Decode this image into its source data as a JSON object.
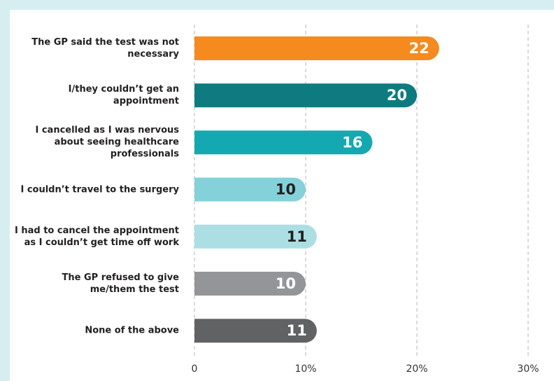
{
  "chart_data": {
    "type": "bar",
    "orientation": "horizontal",
    "categories": [
      "The GP said the test was not necessary",
      "I/they couldn’t get an appointment",
      "I cancelled as I was nervous about seeing healthcare professionals",
      "I couldn’t travel to the surgery",
      "I had to cancel the appointment as I couldn’t get time off work",
      "The GP refused to give me/them the test",
      "None of the above"
    ],
    "values": [
      22,
      20,
      16,
      10,
      11,
      10,
      11
    ],
    "colors": [
      "#f58a1f",
      "#0e7b80",
      "#14a9b1",
      "#84d1d9",
      "#acdfe4",
      "#939598",
      "#616264"
    ],
    "value_label_colors": [
      "#ffffff",
      "#ffffff",
      "#ffffff",
      "#231f20",
      "#231f20",
      "#ffffff",
      "#ffffff"
    ],
    "xlim": [
      0,
      30
    ],
    "xticks": [
      0,
      {
        "value": 10,
        "label": "10%"
      },
      {
        "value": 20,
        "label": "20%"
      },
      {
        "value": 30,
        "label": "30%"
      }
    ],
    "grid": true
  }
}
